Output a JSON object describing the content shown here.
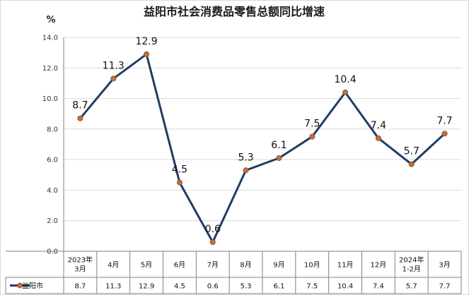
{
  "chart_data": {
    "type": "line",
    "title": "益阳市社会消费品零售总额同比增速",
    "ylabel": "%",
    "ylim": [
      0,
      14
    ],
    "yticks": [
      "0.0",
      "2.0",
      "4.0",
      "6.0",
      "8.0",
      "10.0",
      "12.0",
      "14.0"
    ],
    "categories": [
      [
        "2023年",
        "3月"
      ],
      [
        "4月"
      ],
      [
        "5月"
      ],
      [
        "6月"
      ],
      [
        "7月"
      ],
      [
        "8月"
      ],
      [
        "9月"
      ],
      [
        "10月"
      ],
      [
        "11月"
      ],
      [
        "12月"
      ],
      [
        "2024年",
        "1-2月"
      ],
      [
        "3月"
      ]
    ],
    "series": [
      {
        "name": "益阳市",
        "values": [
          8.7,
          11.3,
          12.9,
          4.5,
          0.6,
          5.3,
          6.1,
          7.5,
          10.4,
          7.4,
          5.7,
          7.7
        ],
        "labels": [
          "8.7",
          "11.3",
          "12.9",
          "4.5",
          "0.6",
          "5.3",
          "6.1",
          "7.5",
          "10.4",
          "7.4",
          "5.7",
          "7.7"
        ],
        "color": "#1f3e64",
        "marker_color": "#c0703a"
      }
    ],
    "grid": true,
    "legend": "data-table"
  }
}
